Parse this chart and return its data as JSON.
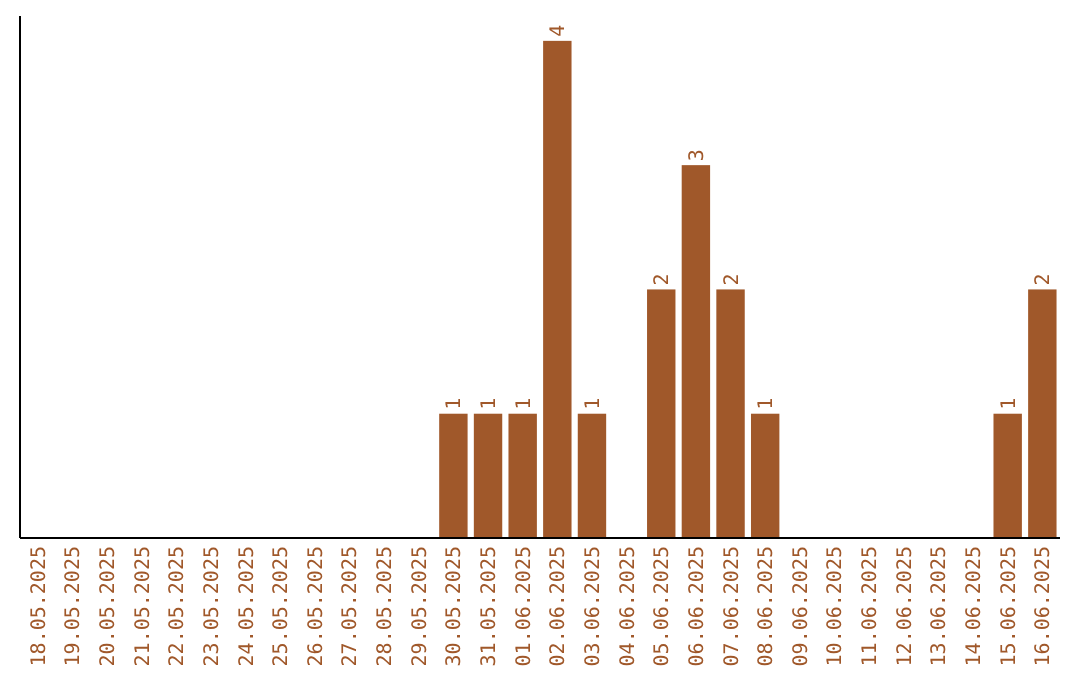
{
  "chart_data": {
    "type": "bar",
    "categories": [
      "18.05.2025",
      "19.05.2025",
      "20.05.2025",
      "21.05.2025",
      "22.05.2025",
      "23.05.2025",
      "24.05.2025",
      "25.05.2025",
      "26.05.2025",
      "27.05.2025",
      "28.05.2025",
      "29.05.2025",
      "30.05.2025",
      "31.05.2025",
      "01.06.2025",
      "02.06.2025",
      "03.06.2025",
      "04.06.2025",
      "05.06.2025",
      "06.06.2025",
      "07.06.2025",
      "08.06.2025",
      "09.06.2025",
      "10.06.2025",
      "11.06.2025",
      "12.06.2025",
      "13.06.2025",
      "14.06.2025",
      "15.06.2025",
      "16.06.2025"
    ],
    "values": [
      null,
      null,
      null,
      null,
      null,
      null,
      null,
      null,
      null,
      null,
      null,
      null,
      1,
      1,
      1,
      4,
      1,
      null,
      2,
      3,
      2,
      1,
      null,
      null,
      null,
      null,
      null,
      null,
      1,
      2
    ],
    "data_labels": true,
    "color": "#a0582a",
    "ylim": [
      0,
      4.2
    ],
    "tick_labels": "x"
  }
}
